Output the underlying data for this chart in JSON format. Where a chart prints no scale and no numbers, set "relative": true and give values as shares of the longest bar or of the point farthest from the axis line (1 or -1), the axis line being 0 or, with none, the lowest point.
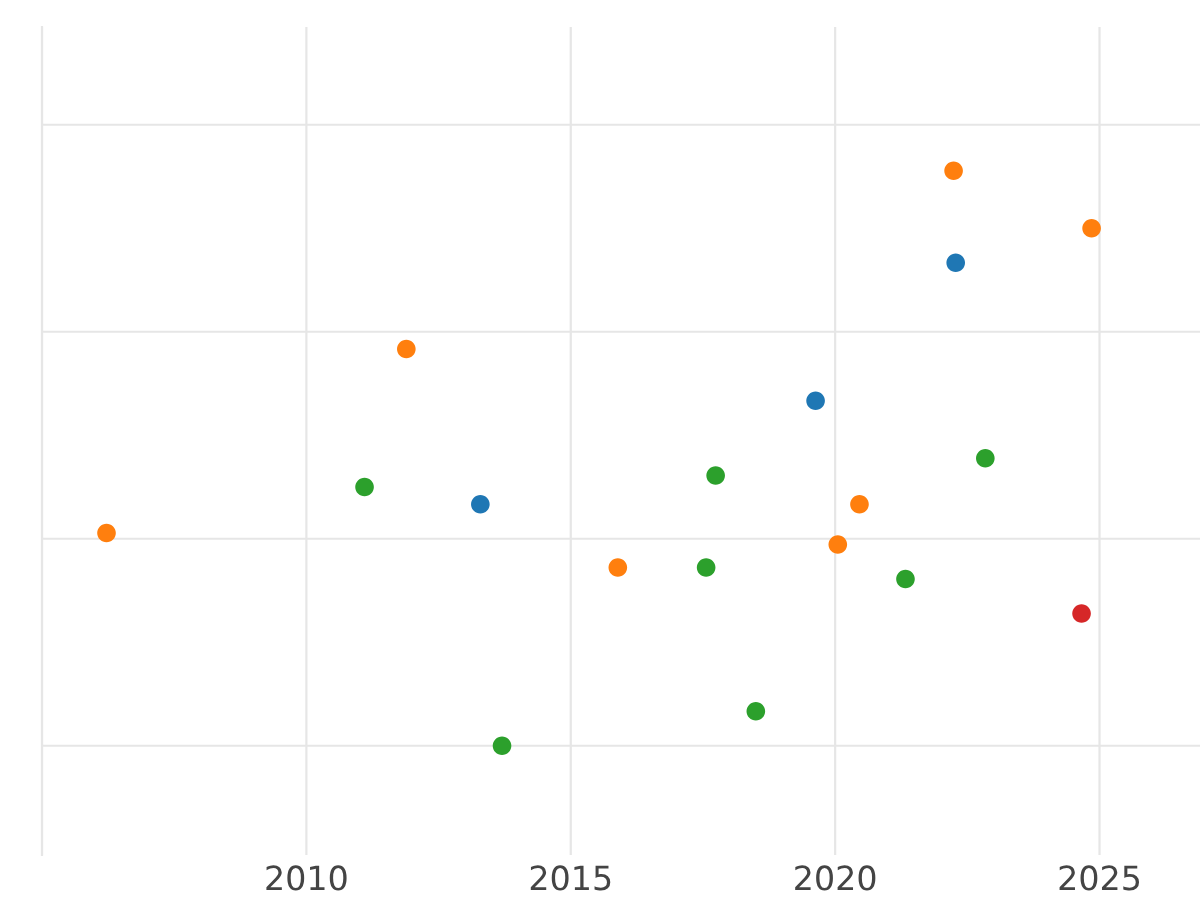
{
  "chart_data": {
    "type": "scatter",
    "relative": true,
    "xlim": [
      2005,
      2026.9
    ],
    "xticks": [
      {
        "value": 2005,
        "label": null
      },
      2010,
      2015,
      2020,
      2025
    ],
    "grid": true,
    "tick_labels": "x",
    "marker": "circle",
    "series": [
      {
        "color": "#ff7f0e",
        "x": [
          2006.22,
          2011.89,
          2015.89,
          2020.05,
          2020.46,
          2022.24,
          2024.85
        ],
        "values": [
          0.37,
          0.69,
          0.31,
          0.35,
          0.42,
          1,
          0.9
        ]
      },
      {
        "color": "#1f77b4",
        "x": [
          2013.29,
          2019.63,
          2022.28
        ],
        "values": [
          0.42,
          0.6,
          0.84
        ]
      },
      {
        "color": "#2ca02c",
        "x": [
          2011.1,
          2013.7,
          2017.56,
          2017.74,
          2018.5,
          2021.33,
          2022.84
        ],
        "values": [
          0.45,
          0,
          0.31,
          0.47,
          0.06,
          0.29,
          0.5
        ]
      },
      {
        "color": "#d62728",
        "x": [
          2024.66
        ],
        "values": [
          0.23
        ]
      }
    ]
  }
}
